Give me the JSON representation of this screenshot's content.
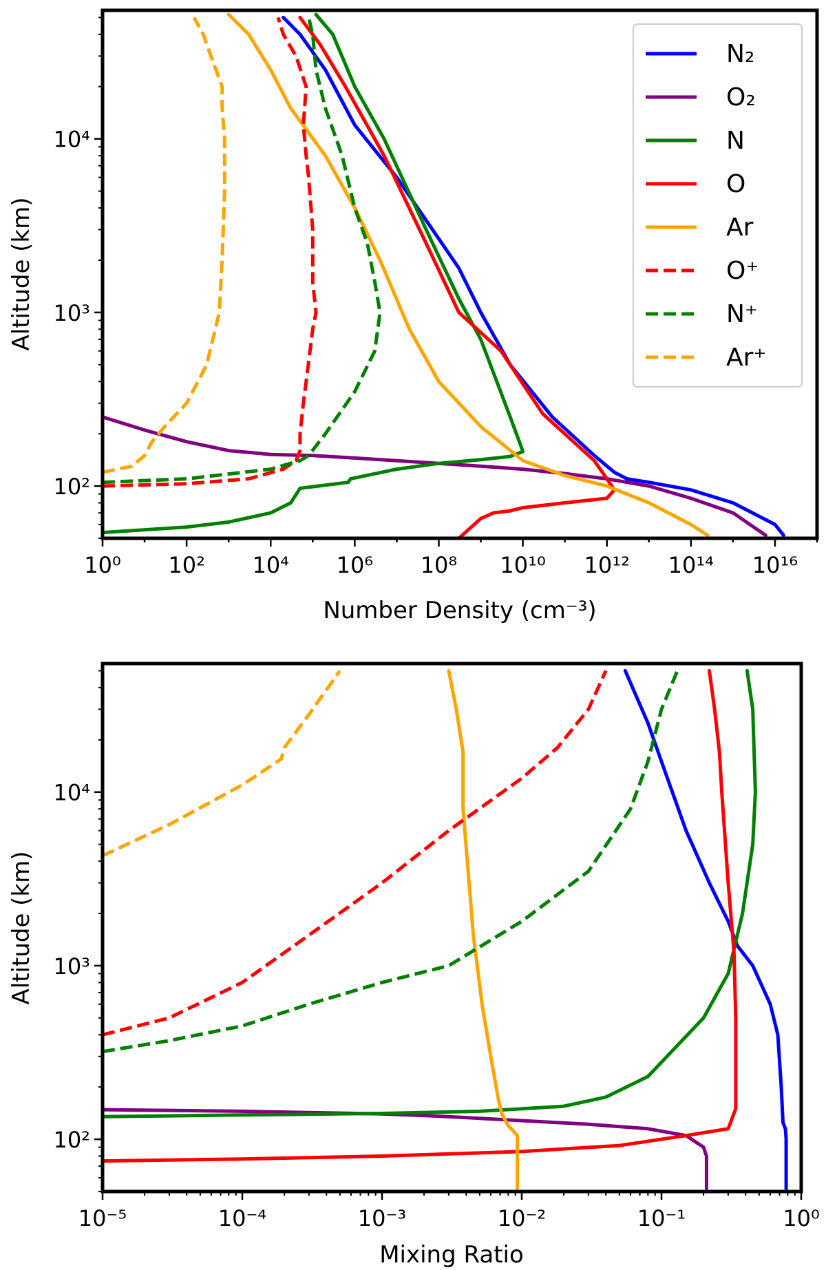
{
  "chart_data": [
    {
      "type": "line",
      "xscale": "log",
      "yscale": "log",
      "xlabel": "Number Density (cm⁻³)",
      "ylabel": "Altitude (km)",
      "xlim": [
        1,
        1e+17
      ],
      "ylim": [
        50,
        55000
      ],
      "xtick_labels": [
        "10⁰",
        "10²",
        "10⁴",
        "10⁶",
        "10⁸",
        "10¹⁰",
        "10¹²",
        "10¹⁴",
        "10¹⁶"
      ],
      "ytick_labels": [
        "10²",
        "10³",
        "10⁴"
      ],
      "legend": {
        "location": "top-right",
        "entries": [
          {
            "label": "N₂",
            "color": "#0000ff",
            "style": "solid"
          },
          {
            "label": "O₂",
            "color": "#800080",
            "style": "solid"
          },
          {
            "label": "N",
            "color": "#008000",
            "style": "solid"
          },
          {
            "label": "O",
            "color": "#ff0000",
            "style": "solid"
          },
          {
            "label": "Ar",
            "color": "#ffa500",
            "style": "solid"
          },
          {
            "label": "O⁺",
            "color": "#ff0000",
            "style": "dashed"
          },
          {
            "label": "N⁺",
            "color": "#008000",
            "style": "dashed"
          },
          {
            "label": "Ar⁺",
            "color": "#ffa500",
            "style": "dashed"
          }
        ]
      },
      "series": [
        {
          "name": "N₂",
          "color": "#0000ff",
          "style": "solid",
          "x": [
            1.6e+16,
            1e+16,
            1000000000000000.0,
            100000000000000.0,
            10000000000000.0,
            3000000000000.0,
            1500000000000.0,
            500000000000.0,
            50000000000.0,
            5000000000.0,
            1000000000.0,
            300000000.0,
            10000000.0,
            1000000.0,
            200000.0,
            50000.0,
            20000.0
          ],
          "y": [
            52,
            60,
            80,
            95,
            105,
            110,
            120,
            150,
            250,
            500,
            1000,
            1800,
            6000,
            12000,
            25000,
            40000,
            50000
          ]
        },
        {
          "name": "O₂",
          "color": "#800080",
          "style": "solid",
          "x": [
            6000000000000000.0,
            1000000000000000.0,
            100000000000000.0,
            10000000000000.0,
            1000000000000.0,
            100000000000.0,
            10000000000.0,
            1000000000.0,
            100000000.0,
            10000000.0,
            1000000.0,
            100000.0,
            10000.0,
            1000.0,
            100,
            10,
            1
          ],
          "y": [
            52,
            70,
            85,
            100,
            110,
            118,
            125,
            130,
            135,
            140,
            145,
            150,
            152,
            160,
            180,
            210,
            250
          ]
        },
        {
          "name": "N",
          "color": "#008000",
          "style": "solid",
          "x": [
            1,
            100.0,
            1000.0,
            10000.0,
            30000.0,
            50000.0,
            700000.0,
            800000.0,
            10000000.0,
            100000000.0,
            1000000000.0,
            5000000000.0,
            10000000000.0,
            9000000000.0,
            5000000000.0,
            1000000000.0,
            300000000.0,
            50000000.0,
            5000000.0,
            1000000.0,
            300000.0,
            120000.0
          ],
          "y": [
            54,
            58,
            62,
            70,
            80,
            97,
            105,
            110,
            125,
            135,
            142,
            148,
            158,
            170,
            250,
            700,
            1200,
            3000,
            10000,
            20000,
            40000,
            52000
          ]
        },
        {
          "name": "O",
          "color": "#ff0000",
          "style": "solid",
          "x": [
            1,
            10000.0,
            100000000.0,
            300000000.0,
            1000000000.0,
            2000000000.0,
            5000000000.0,
            10000000000.0,
            100000000000.0,
            1000000000000.0,
            1500000000000.0,
            1000000000000.0,
            500000000000.0,
            30000000000.0,
            3000000000.0,
            300000000.0,
            50000000.0,
            5000000.0,
            600000.0,
            150000.0,
            50000.0
          ],
          "y": [
            50,
            50,
            50,
            50,
            65,
            70,
            72,
            75,
            80,
            85,
            95,
            110,
            140,
            260,
            600,
            1000,
            2500,
            8000,
            20000,
            35000,
            50000
          ]
        },
        {
          "name": "Ar",
          "color": "#ffa500",
          "style": "solid",
          "x": [
            250000000000000.0,
            100000000000000.0,
            10000000000000.0,
            1000000000000.0,
            100000000000.0,
            10000000000.0,
            1000000000.0,
            100000000.0,
            20000000.0,
            4000000.0,
            1000000.0,
            200000.0,
            30000.0,
            10000.0,
            3000.0,
            1000.0
          ],
          "y": [
            52,
            60,
            80,
            100,
            115,
            140,
            220,
            400,
            800,
            2000,
            4000,
            8000,
            15000,
            25000,
            40000,
            52000
          ]
        },
        {
          "name": "O⁺",
          "color": "#ff0000",
          "style": "dashed",
          "x": [
            1,
            100,
            3000.0,
            20000.0,
            40000.0,
            50000.0,
            50000.0,
            60000.0,
            70000.0,
            100000.0,
            120000.0,
            100000.0,
            100000.0,
            80000.0,
            70000.0,
            60000.0,
            70000.0,
            40000.0,
            20000.0,
            15000.0
          ],
          "y": [
            100,
            103,
            110,
            125,
            140,
            160,
            200,
            300,
            400,
            800,
            1000,
            1500,
            3000,
            6000,
            8000,
            12000,
            20000,
            30000,
            40000,
            50000
          ]
        },
        {
          "name": "N⁺",
          "color": "#008000",
          "style": "dashed",
          "x": [
            1,
            100,
            10000.0,
            50000.0,
            80000.0,
            200000.0,
            1000000.0,
            3000000.0,
            4000000.0,
            3000000.0,
            2000000.0,
            1000000.0,
            500000.0,
            200000.0,
            120000.0,
            100000.0,
            80000.0
          ],
          "y": [
            105,
            110,
            125,
            140,
            150,
            200,
            350,
            600,
            1000,
            1500,
            2500,
            4000,
            8000,
            15000,
            25000,
            40000,
            50000
          ]
        },
        {
          "name": "Ar⁺",
          "color": "#ffa500",
          "style": "dashed",
          "x": [
            1,
            5,
            10,
            15,
            30,
            100,
            300,
            600,
            700,
            800,
            800,
            700,
            700,
            500,
            300,
            250,
            150
          ],
          "y": [
            120,
            130,
            150,
            180,
            220,
            300,
            500,
            1000,
            2000,
            5000,
            10000,
            15000,
            20000,
            25000,
            35000,
            40000,
            50000
          ]
        }
      ]
    },
    {
      "type": "line",
      "xscale": "log",
      "yscale": "log",
      "xlabel": "Mixing Ratio",
      "ylabel": "Altitude (km)",
      "xlim": [
        1e-05,
        1
      ],
      "ylim": [
        50,
        55000
      ],
      "xtick_labels": [
        "10⁻⁵",
        "10⁻⁴",
        "10⁻³",
        "10⁻²",
        "10⁻¹",
        "10⁰"
      ],
      "ytick_labels": [
        "10²",
        "10³",
        "10⁴"
      ],
      "series": [
        {
          "name": "N₂",
          "color": "#0000ff",
          "style": "solid",
          "x": [
            0.78,
            0.78,
            0.77,
            0.74,
            0.72,
            0.68,
            0.6,
            0.45,
            0.35,
            0.3,
            0.22,
            0.15,
            0.1,
            0.08,
            0.055
          ],
          "y": [
            52,
            100,
            115,
            125,
            200,
            400,
            600,
            1000,
            1300,
            1800,
            3000,
            6000,
            15000,
            25000,
            50000
          ]
        },
        {
          "name": "O₂",
          "color": "#800080",
          "style": "solid",
          "x": [
            0.21,
            0.21,
            0.2,
            0.15,
            0.08,
            0.03,
            0.01,
            0.003,
            0.001,
            0.0001,
            1e-05
          ],
          "y": [
            52,
            80,
            90,
            105,
            115,
            122,
            128,
            135,
            140,
            145,
            148
          ]
        },
        {
          "name": "N",
          "color": "#008000",
          "style": "solid",
          "x": [
            1e-05,
            0.0001,
            0.001,
            0.005,
            0.02,
            0.04,
            0.08,
            0.2,
            0.3,
            0.38,
            0.45,
            0.47,
            0.45,
            0.41
          ],
          "y": [
            135,
            138,
            141,
            145,
            155,
            175,
            230,
            500,
            900,
            2000,
            5000,
            10000,
            30000,
            50000
          ]
        },
        {
          "name": "O",
          "color": "#ff0000",
          "style": "solid",
          "x": [
            1e-05,
            0.0001,
            0.001,
            0.01,
            0.05,
            0.15,
            0.3,
            0.34,
            0.34,
            0.33,
            0.3,
            0.27,
            0.26,
            0.24,
            0.22
          ],
          "y": [
            75,
            77,
            80,
            85,
            92,
            105,
            115,
            150,
            500,
            1200,
            3000,
            10000,
            17000,
            30000,
            50000
          ]
        },
        {
          "name": "Ar",
          "color": "#ffa500",
          "style": "solid",
          "x": [
            0.0093,
            0.0093,
            0.0093,
            0.008,
            0.0072,
            0.0068,
            0.006,
            0.0052,
            0.0048,
            0.0045,
            0.0042,
            0.0038,
            0.0038,
            0.0034,
            0.003
          ],
          "y": [
            52,
            80,
            105,
            120,
            140,
            170,
            300,
            600,
            1000,
            1500,
            3000,
            8000,
            17000,
            30000,
            50000
          ]
        },
        {
          "name": "O⁺",
          "color": "#ff0000",
          "style": "dashed",
          "x": [
            1e-05,
            3e-05,
            0.0001,
            0.0003,
            0.001,
            0.003,
            0.01,
            0.018,
            0.02,
            0.03,
            0.04
          ],
          "y": [
            400,
            500,
            800,
            1500,
            3000,
            6000,
            12000,
            18000,
            20000,
            30000,
            50000
          ]
        },
        {
          "name": "N⁺",
          "color": "#008000",
          "style": "dashed",
          "x": [
            1e-05,
            3e-05,
            0.0001,
            0.0003,
            0.001,
            0.003,
            0.01,
            0.03,
            0.06,
            0.08,
            0.1,
            0.13
          ],
          "y": [
            320,
            370,
            450,
            600,
            800,
            1000,
            1800,
            3500,
            8000,
            15000,
            30000,
            50000
          ]
        },
        {
          "name": "Ar⁺",
          "color": "#ffa500",
          "style": "dashed",
          "x": [
            1e-05,
            3e-05,
            0.0001,
            0.00019,
            0.0002,
            0.0003,
            0.0005
          ],
          "y": [
            4300,
            6500,
            11000,
            15500,
            18000,
            28000,
            50000
          ]
        }
      ]
    }
  ]
}
